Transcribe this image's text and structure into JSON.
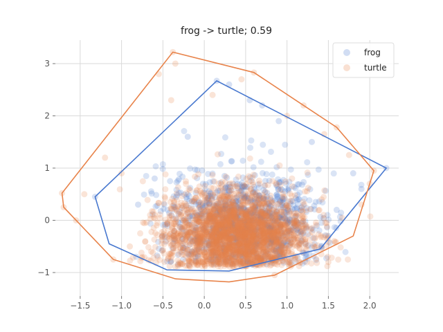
{
  "chart_data": {
    "type": "scatter",
    "title": "frog -> turtle; 0.59",
    "xlabel": "",
    "ylabel": "",
    "xlim": [
      -1.8,
      2.35
    ],
    "ylim": [
      -1.45,
      3.45
    ],
    "xticks": [
      -1.5,
      -1.0,
      -0.5,
      0.0,
      0.5,
      1.0,
      1.5,
      2.0
    ],
    "xtick_labels": [
      "−1.5",
      "−1.0",
      "−0.5",
      "0.0",
      "0.5",
      "1.0",
      "1.5",
      "2.0"
    ],
    "yticks": [
      -1,
      0,
      1,
      2,
      3
    ],
    "ytick_labels": [
      "−1",
      "0",
      "1",
      "2",
      "3"
    ],
    "grid": true,
    "legend_position": "top-right",
    "colors": {
      "frog": "#4878cf",
      "turtle": "#e8834a"
    },
    "series": [
      {
        "name": "frog",
        "color": "#4878cf",
        "hull": [
          [
            -1.32,
            0.45
          ],
          [
            0.15,
            2.67
          ],
          [
            2.2,
            1.0
          ],
          [
            1.4,
            -0.55
          ],
          [
            0.3,
            -0.97
          ],
          [
            -0.45,
            -0.95
          ],
          [
            -1.15,
            -0.45
          ]
        ],
        "points": [
          [
            0.15,
            2.67
          ],
          [
            2.2,
            1.0
          ],
          [
            -1.32,
            0.45
          ],
          [
            0.55,
            2.3
          ],
          [
            0.3,
            2.6
          ],
          [
            1.3,
            1.5
          ],
          [
            1.8,
            0.9
          ],
          [
            1.6,
            0.2
          ],
          [
            -0.2,
            1.6
          ],
          [
            -0.8,
            0.3
          ],
          [
            0.9,
            1.9
          ],
          [
            1.9,
            0.6
          ],
          [
            -0.6,
            0.8
          ],
          [
            1.5,
            -0.3
          ],
          [
            0.7,
            2.2
          ]
        ],
        "cloud": {
          "cx": 0.45,
          "cy": -0.05,
          "sx": 0.45,
          "sy": 0.5,
          "n": 1100
        }
      },
      {
        "name": "turtle",
        "color": "#e8834a",
        "hull": [
          [
            -1.72,
            0.52
          ],
          [
            -0.38,
            3.22
          ],
          [
            0.6,
            2.83
          ],
          [
            1.2,
            2.2
          ],
          [
            1.6,
            1.78
          ],
          [
            2.05,
            0.95
          ],
          [
            1.8,
            -0.3
          ],
          [
            0.85,
            -1.05
          ],
          [
            0.3,
            -1.18
          ],
          [
            -0.35,
            -1.12
          ],
          [
            -1.1,
            -0.75
          ],
          [
            -1.7,
            0.25
          ]
        ],
        "points": [
          [
            -0.38,
            3.22
          ],
          [
            -0.35,
            3.0
          ],
          [
            0.6,
            2.83
          ],
          [
            0.45,
            2.7
          ],
          [
            1.2,
            2.2
          ],
          [
            1.6,
            1.78
          ],
          [
            2.05,
            0.95
          ],
          [
            -1.72,
            0.52
          ],
          [
            -1.7,
            0.25
          ],
          [
            -1.1,
            -0.75
          ],
          [
            0.85,
            -1.05
          ],
          [
            -0.55,
            2.8
          ],
          [
            -1.45,
            0.5
          ],
          [
            -1.2,
            1.2
          ],
          [
            1.75,
            1.25
          ],
          [
            1.9,
            0.3
          ],
          [
            1.5,
            -0.8
          ],
          [
            -0.9,
            -0.5
          ],
          [
            0.1,
            2.4
          ],
          [
            1.0,
            2.0
          ],
          [
            -0.4,
            2.3
          ],
          [
            -1.0,
            0.9
          ],
          [
            1.45,
            1.65
          ],
          [
            -1.55,
            0.0
          ],
          [
            2.0,
            0.7
          ]
        ],
        "cloud": {
          "cx": 0.4,
          "cy": -0.25,
          "sx": 0.42,
          "sy": 0.4,
          "n": 2600
        }
      }
    ]
  }
}
